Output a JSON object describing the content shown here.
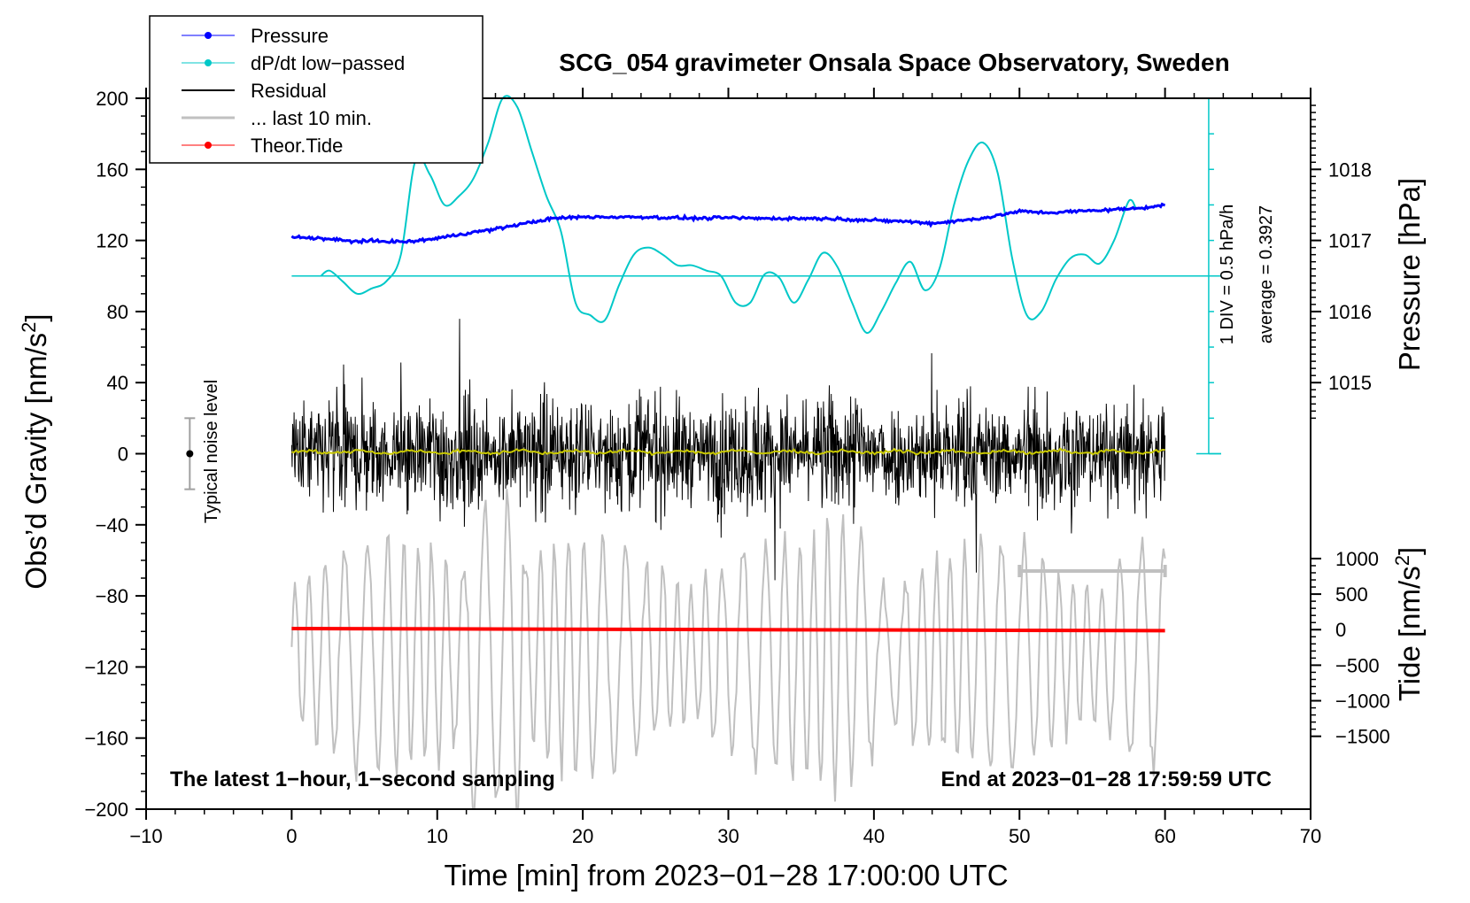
{
  "chart_data": {
    "type": "line",
    "title": "SCG_054 gravimeter Onsala Space Observatory, Sweden",
    "xlabel": "Time [min] from 2023−01−28 17:00:00 UTC",
    "ylabel_left": "Obs’d Gravity [nm/s",
    "ylabel_left_sup": "2",
    "ylabel_left_end": "]",
    "ylabel_right_pressure": "Pressure [hPa]",
    "ylabel_right_tide": "Tide [nm/s",
    "ylabel_right_tide_sup": "2",
    "ylabel_right_tide_end": "]",
    "xlim": [
      -10,
      70
    ],
    "ylim": [
      -200,
      200
    ],
    "x_ticks": [
      "−10",
      "0",
      "10",
      "20",
      "30",
      "40",
      "50",
      "60",
      "70"
    ],
    "x_tick_values": [
      -10,
      0,
      10,
      20,
      30,
      40,
      50,
      60,
      70
    ],
    "y_ticks": [
      "200",
      "160",
      "120",
      "80",
      "40",
      "0",
      "−40",
      "−80",
      "−120",
      "−160",
      "−200"
    ],
    "y_tick_values": [
      200,
      160,
      120,
      80,
      40,
      0,
      -40,
      -80,
      -120,
      -160,
      -200
    ],
    "pressure_axis": {
      "ticks": [
        "1018",
        "1017",
        "1016",
        "1015"
      ],
      "values": [
        1018,
        1017,
        1016,
        1015
      ],
      "ref_hpa": 1015,
      "ref_gravity": 40,
      "gravity_per_hpa": 40
    },
    "tide_axis": {
      "ticks": [
        "1000",
        "500",
        "0",
        "−500",
        "−1000",
        "−1500"
      ],
      "values": [
        1000,
        500,
        0,
        -500,
        -1000,
        -1500
      ],
      "ref_tide": 0,
      "ref_gravity": -99,
      "gravity_per_nms2": 0.04
    },
    "series": [
      {
        "name": "Pressure",
        "color": "#0000ff",
        "x": [
          0,
          2,
          4,
          6,
          8,
          10,
          12,
          14,
          16,
          18,
          20,
          22,
          24,
          26,
          28,
          30,
          32,
          34,
          36,
          38,
          40,
          42,
          44,
          46,
          48,
          50,
          52,
          54,
          56,
          58,
          60
        ],
        "values": [
          1017.05,
          1017.03,
          1016.99,
          1016.99,
          1016.98,
          1017.03,
          1017.1,
          1017.16,
          1017.24,
          1017.31,
          1017.33,
          1017.33,
          1017.33,
          1017.32,
          1017.31,
          1017.32,
          1017.31,
          1017.31,
          1017.31,
          1017.3,
          1017.28,
          1017.27,
          1017.24,
          1017.28,
          1017.33,
          1017.41,
          1017.39,
          1017.41,
          1017.43,
          1017.45,
          1017.5
        ]
      },
      {
        "name": "dP/dt low−passed",
        "color": "#00c8c8",
        "x": [
          2,
          2.6,
          3.5,
          4.5,
          5.5,
          6.5,
          7.5,
          8.5,
          9.5,
          10.5,
          11.5,
          12.5,
          13.5,
          14.5,
          15.5,
          16.5,
          17.5,
          18.5,
          19.5,
          20.5,
          21.5,
          22.5,
          23.5,
          24.5,
          25.5,
          26.5,
          27.5,
          28.5,
          29.5,
          30.5,
          31.5,
          32.5,
          33.5,
          34.5,
          35.5,
          36.5,
          37.5,
          38.5,
          39.5,
          40.5,
          41.5,
          42.5,
          43.5,
          44.5,
          45.5,
          46.5,
          47.5,
          48.5,
          49.5,
          50.5,
          51.5,
          52.5,
          53.5,
          54.5,
          55.5,
          56.5,
          57.5,
          58
        ],
        "values": [
          100,
          103,
          97,
          90,
          93,
          97,
          112,
          165,
          157,
          140,
          145,
          155,
          175,
          200,
          195,
          170,
          145,
          125,
          85,
          78,
          75,
          95,
          112,
          116,
          112,
          106,
          106,
          103,
          100,
          85,
          85,
          101,
          99,
          85,
          98,
          113,
          105,
          85,
          68,
          80,
          96,
          108,
          92,
          104,
          140,
          165,
          175,
          158,
          110,
          78,
          80,
          98,
          110,
          112,
          107,
          120,
          142,
          138
        ]
      },
      {
        "name": "Residual",
        "color": "#000000",
        "description_values": "noise band roughly between -70 and +80 nm/s2 around 0"
      },
      {
        "name": "... last 10 min.",
        "color": "#c0c0c0"
      },
      {
        "name": "Theor.Tide",
        "color": "#ff0000",
        "x": [
          0,
          60
        ],
        "values": [
          15,
          -15
        ]
      }
    ],
    "legend_position": "top-left",
    "legend": [
      {
        "label": "Pressure",
        "color": "#0000ff",
        "marker": true,
        "lw": 1
      },
      {
        "label": "dP/dt low−passed",
        "color": "#00c8c8",
        "marker": true,
        "lw": 1
      },
      {
        "label": "Residual",
        "color": "#000000",
        "marker": false,
        "lw": 2
      },
      {
        "label": "... last 10 min.",
        "color": "#c0c0c0",
        "marker": false,
        "lw": 3
      },
      {
        "label": "Theor.Tide",
        "color": "#ff0000",
        "marker": true,
        "lw": 1
      }
    ],
    "dpdt_scale": {
      "label_div": "1 DIV = 0.5 hPa/h",
      "label_avg": "average = 0.3927",
      "baseline_gravity": 100,
      "baseline_x": 63
    },
    "noise_level": {
      "label": "Typical noise level",
      "x": -7,
      "center": 0,
      "half_range": 20
    },
    "last10_bar": {
      "x_start": 50,
      "x_end": 60,
      "y": -66
    },
    "annotation_left": "The latest 1−hour, 1−second sampling",
    "annotation_right": "End at 2023−01−28 17:59:59 UTC"
  }
}
